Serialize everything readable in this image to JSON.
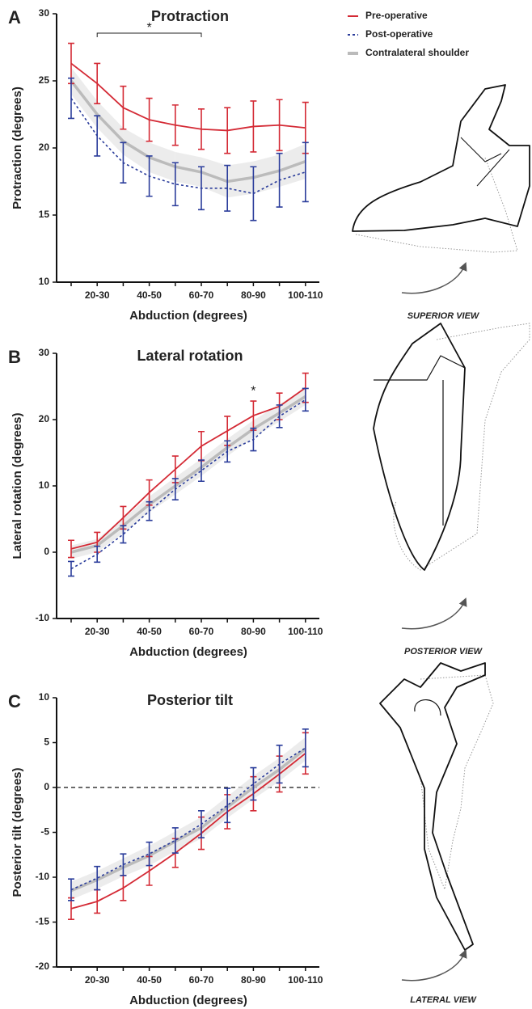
{
  "chart_data": [
    {
      "type": "line",
      "panel_label": "A",
      "title": "Protraction",
      "xlabel": "Abduction (degrees)",
      "ylabel": "Protraction (degrees)",
      "view_label": "SUPERIOR VIEW",
      "categories": [
        null,
        "20-30",
        null,
        "40-50",
        null,
        "60-70",
        null,
        "80-90",
        null,
        "100-110"
      ],
      "ylim": [
        10,
        30
      ],
      "yticks": [
        10,
        15,
        20,
        25,
        30
      ],
      "legend": true,
      "series": [
        {
          "name": "Pre-operative",
          "color": "#d42a35",
          "line_style": "solid",
          "values": [
            26.3,
            24.8,
            23.0,
            22.1,
            21.7,
            21.4,
            21.3,
            21.6,
            21.7,
            21.5
          ],
          "errors": [
            1.5,
            1.5,
            1.6,
            1.6,
            1.5,
            1.5,
            1.7,
            1.9,
            1.9,
            1.9
          ]
        },
        {
          "name": "Post-operative",
          "color": "#2b3d9b",
          "line_style": "dotted",
          "values": [
            23.7,
            20.9,
            18.9,
            17.9,
            17.3,
            17.0,
            17.0,
            16.6,
            17.6,
            18.2
          ],
          "errors": [
            1.5,
            1.5,
            1.5,
            1.5,
            1.6,
            1.6,
            1.7,
            2.0,
            2.0,
            2.2
          ]
        },
        {
          "name": "Contralateral shoulder",
          "color": "#bbbbbb",
          "line_style": "band",
          "values": [
            25.0,
            22.5,
            20.5,
            19.3,
            18.6,
            18.2,
            17.5,
            17.8,
            18.3,
            19.0
          ],
          "errors": [
            1.0,
            1.0,
            1.0,
            1.1,
            1.1,
            1.1,
            1.2,
            1.2,
            1.2,
            1.3
          ]
        }
      ],
      "annotations": [
        {
          "text": "*",
          "span": [
            "20-30",
            "60-70"
          ]
        }
      ]
    },
    {
      "type": "line",
      "panel_label": "B",
      "title": "Lateral rotation",
      "xlabel": "Abduction (degrees)",
      "ylabel": "Lateral rotation (degrees)",
      "view_label": "POSTERIOR VIEW",
      "categories": [
        null,
        "20-30",
        null,
        "40-50",
        null,
        "60-70",
        null,
        "80-90",
        null,
        "100-110"
      ],
      "ylim": [
        -10,
        30
      ],
      "yticks": [
        -10,
        0,
        10,
        20,
        30
      ],
      "legend": false,
      "series": [
        {
          "color": "#d42a35",
          "line_style": "solid",
          "values": [
            0.5,
            1.5,
            5.2,
            9.0,
            12.5,
            16.0,
            18.3,
            20.6,
            22.0,
            24.8
          ],
          "errors": [
            1.3,
            1.5,
            1.7,
            1.9,
            2.0,
            2.2,
            2.2,
            2.2,
            2.0,
            2.2
          ]
        },
        {
          "color": "#2b3d9b",
          "line_style": "dotted",
          "values": [
            -2.5,
            -0.3,
            2.7,
            6.2,
            9.5,
            12.3,
            15.2,
            17.0,
            20.5,
            23.0
          ],
          "errors": [
            1.1,
            1.2,
            1.3,
            1.4,
            1.6,
            1.6,
            1.6,
            1.7,
            1.7,
            1.7
          ]
        },
        {
          "color": "#bbbbbb",
          "line_style": "band",
          "values": [
            0.0,
            1.0,
            4.0,
            7.2,
            10.0,
            12.8,
            15.8,
            18.6,
            21.0,
            23.5
          ],
          "errors": [
            1.0,
            1.0,
            1.1,
            1.2,
            1.3,
            1.3,
            1.3,
            1.3,
            1.3,
            1.3
          ]
        }
      ],
      "annotations": [
        {
          "text": "*",
          "at": "80-90"
        }
      ]
    },
    {
      "type": "line",
      "panel_label": "C",
      "title": "Posterior tilt",
      "xlabel": "Abduction (degrees)",
      "ylabel": "Posterior tilt (degrees)",
      "view_label": "LATERAL VIEW",
      "categories": [
        null,
        "20-30",
        null,
        "40-50",
        null,
        "60-70",
        null,
        "80-90",
        null,
        "100-110"
      ],
      "ylim": [
        -20,
        10
      ],
      "yticks": [
        -20,
        -15,
        -10,
        -5,
        0,
        5,
        10
      ],
      "legend": false,
      "reference_line": 0,
      "series": [
        {
          "color": "#d42a35",
          "line_style": "solid",
          "values": [
            -13.5,
            -12.7,
            -11.2,
            -9.3,
            -7.3,
            -5.1,
            -2.7,
            -0.7,
            1.5,
            3.8
          ],
          "errors": [
            1.2,
            1.3,
            1.4,
            1.6,
            1.6,
            1.8,
            1.9,
            1.9,
            2.0,
            2.3
          ]
        },
        {
          "color": "#2b3d9b",
          "line_style": "dotted",
          "values": [
            -11.4,
            -10.1,
            -8.6,
            -7.4,
            -5.9,
            -4.1,
            -2.0,
            0.4,
            2.6,
            4.4
          ],
          "errors": [
            1.2,
            1.3,
            1.2,
            1.3,
            1.4,
            1.5,
            1.9,
            1.8,
            2.1,
            2.1
          ]
        },
        {
          "color": "#bbbbbb",
          "line_style": "band",
          "values": [
            -11.5,
            -10.3,
            -8.9,
            -7.6,
            -6.0,
            -4.5,
            -2.2,
            0.0,
            2.0,
            4.3
          ],
          "errors": [
            1.0,
            1.0,
            1.0,
            1.1,
            1.1,
            1.2,
            1.2,
            1.3,
            1.3,
            1.3
          ]
        }
      ]
    }
  ]
}
